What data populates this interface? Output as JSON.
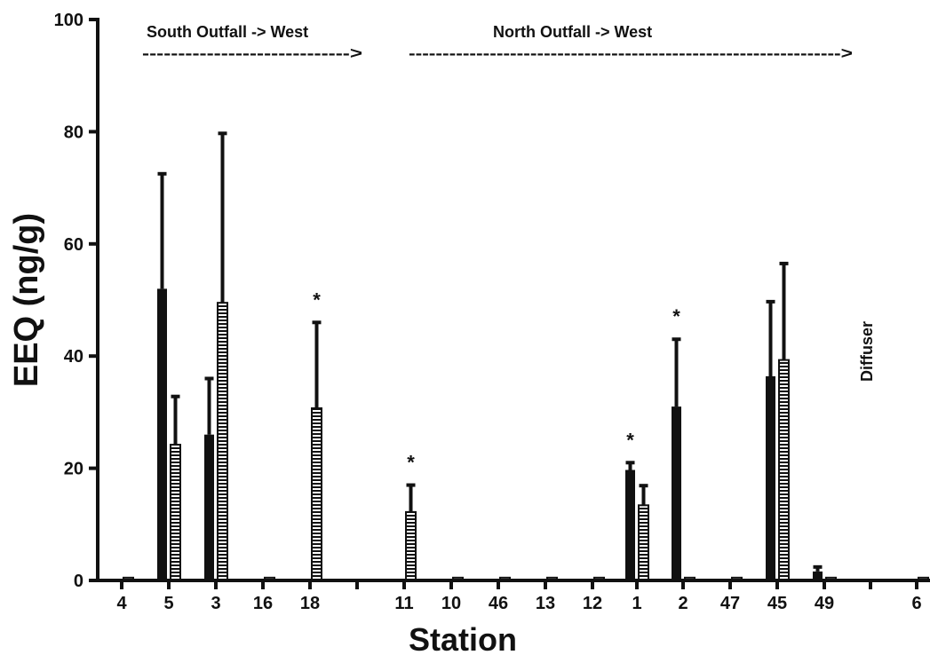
{
  "chart_data": {
    "type": "bar",
    "ylabel": "EEQ (ng/g)",
    "xlabel": "Station",
    "ylim": [
      0,
      100
    ],
    "yticks": [
      0,
      20,
      40,
      60,
      80,
      100
    ],
    "categories": [
      "4",
      "5",
      "3",
      "16",
      "18",
      "11",
      "10",
      "46",
      "13",
      "12",
      "1",
      "2",
      "47",
      "45",
      "49",
      "6"
    ],
    "series": [
      {
        "style": "solid-black",
        "values": [
          0.3,
          52,
          26,
          0.3,
          0.3,
          0.3,
          0.3,
          0.3,
          0.3,
          0.3,
          19.7,
          31,
          0.3,
          36.4,
          1.6,
          0.3
        ],
        "error": [
          0,
          20.5,
          10,
          0,
          0,
          0,
          0,
          0,
          0,
          0,
          1.3,
          12,
          0,
          13.3,
          0.8,
          0
        ]
      },
      {
        "style": "hatched",
        "values": [
          0.5,
          24.2,
          49.5,
          0.5,
          30.7,
          12.2,
          0.5,
          0.5,
          0.5,
          0.5,
          13.4,
          0.5,
          0.5,
          39.3,
          0.5,
          0.5
        ],
        "error": [
          0,
          8.6,
          30.2,
          0,
          15.3,
          4.8,
          0,
          0,
          0,
          0,
          3.5,
          0,
          0,
          17.2,
          0,
          0
        ]
      }
    ],
    "significance": [
      {
        "category": "18",
        "label": "*"
      },
      {
        "category": "11",
        "label": "*"
      },
      {
        "category": "1",
        "label": "*"
      },
      {
        "category": "2",
        "label": "*"
      }
    ],
    "annotations": [
      {
        "id": "south",
        "title": "South Outfall ->  West",
        "arrow": "----------------------------->"
      },
      {
        "id": "north",
        "title": "North Outfall ->  West",
        "arrow": "---------------------------------------------------------------->"
      },
      {
        "id": "diffuser",
        "text": "Diffuser"
      }
    ]
  }
}
